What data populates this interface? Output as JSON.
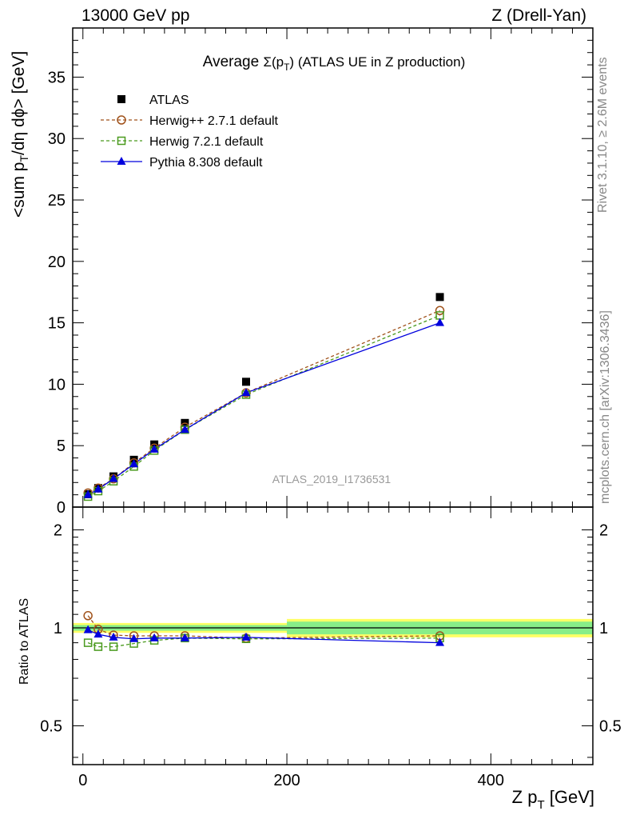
{
  "header": {
    "left": "13000 GeV pp",
    "right": "Z (Drell-Yan)"
  },
  "side_labels": {
    "rivet": "Rivet 3.1.10, ≥ 2.6M events",
    "mcplots": "mcplots.cern.ch [arXiv:1306.3436]"
  },
  "colors": {
    "atlas": "#000000",
    "herwigpp": "#a0521b",
    "herwig7": "#4a9a1e",
    "pythia": "#0000dd",
    "band_inner": "#88ee88",
    "band_outer": "#ffff66"
  },
  "chart_data": {
    "type": "line",
    "title_prefix": "Average ",
    "title_symbol": "Σ(p",
    "title_sub": "T",
    "title_close": ")",
    "title_suffix": " (ATLAS UE in Z production)",
    "watermark": "ATLAS_2019_I1736531",
    "xlabel_main": "Z p",
    "xlabel_sub": "T",
    "xlabel_unit": " [GeV]",
    "ylabel_a": "<sum p",
    "ylabel_sub": "T",
    "ylabel_b": "/dη dϕ> [GeV]",
    "ratio_ylabel": "Ratio to ATLAS",
    "xlim": [
      -10,
      500
    ],
    "ylim": [
      0,
      39
    ],
    "ratio_ylim": [
      0.38,
      2.35
    ],
    "x_ticks": [
      0,
      200,
      400
    ],
    "x_tick_labels": [
      "0",
      "200",
      "400"
    ],
    "y_ticks": [
      0,
      5,
      10,
      15,
      20,
      25,
      30,
      35
    ],
    "y_tick_labels": [
      "0",
      "5",
      "10",
      "15",
      "20",
      "25",
      "30",
      "35"
    ],
    "ratio_ticks": [
      0.5,
      1,
      2
    ],
    "ratio_tick_labels": [
      "0.5",
      "1",
      "2"
    ],
    "x": [
      5,
      15,
      30,
      50,
      70,
      100,
      160,
      350
    ],
    "series": [
      {
        "name": "ATLAS",
        "marker": "square-filled",
        "values": [
          1.05,
          1.55,
          2.5,
          3.85,
          5.1,
          6.85,
          10.2,
          17.1
        ]
      },
      {
        "name": "Herwig++ 2.7.1 default",
        "marker": "circle-open",
        "style": "dashed",
        "values": [
          1.15,
          1.55,
          2.3,
          3.6,
          4.8,
          6.5,
          9.3,
          16.0
        ]
      },
      {
        "name": "Herwig 7.2.1 default",
        "marker": "square-open",
        "style": "dashed",
        "values": [
          0.85,
          1.3,
          2.1,
          3.3,
          4.6,
          6.3,
          9.15,
          15.6
        ]
      },
      {
        "name": "Pythia 8.308 default",
        "marker": "triangle-filled",
        "style": "solid",
        "values": [
          1.0,
          1.45,
          2.3,
          3.5,
          4.7,
          6.3,
          9.3,
          15.0
        ]
      }
    ],
    "ratio_series": [
      {
        "name": "Herwig++ 2.7.1 default",
        "values": [
          1.09,
          0.99,
          0.95,
          0.945,
          0.945,
          0.945,
          0.93,
          0.945
        ]
      },
      {
        "name": "Herwig 7.2.1 default",
        "values": [
          0.9,
          0.875,
          0.875,
          0.895,
          0.915,
          0.93,
          0.925,
          0.93
        ]
      },
      {
        "name": "Pythia 8.308 default",
        "values": [
          0.985,
          0.955,
          0.935,
          0.925,
          0.93,
          0.93,
          0.935,
          0.9
        ]
      }
    ],
    "ratio_band": [
      {
        "x_from": -10,
        "x_to": 200,
        "inner": 0.02,
        "outer": 0.035
      },
      {
        "x_from": 200,
        "x_to": 500,
        "inner": 0.045,
        "outer": 0.065
      }
    ],
    "legend_position": "top-left"
  }
}
